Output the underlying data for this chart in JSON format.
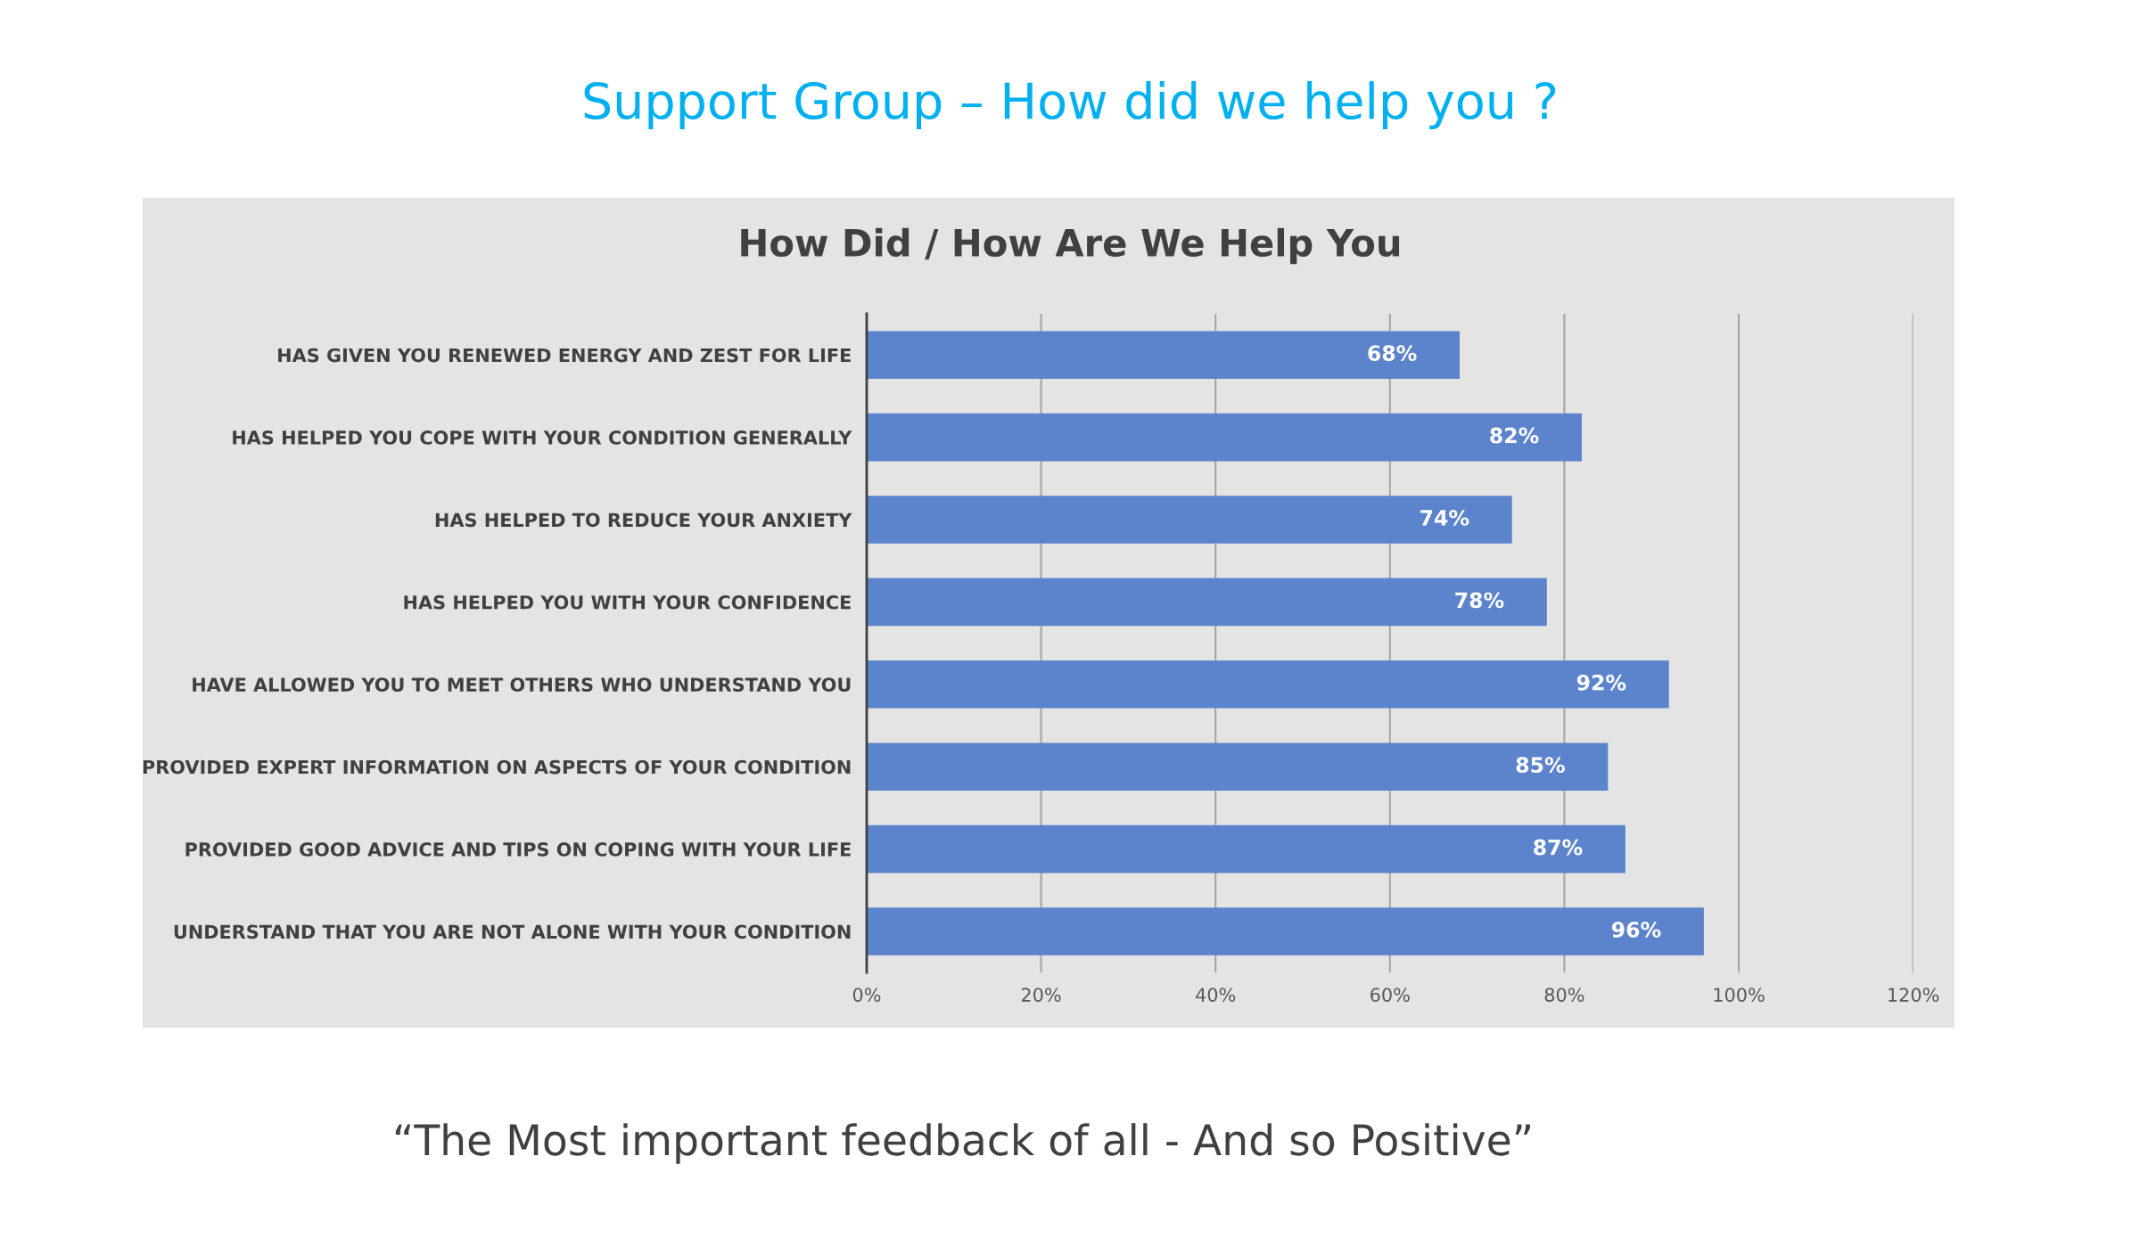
{
  "chart_data": {
    "type": "bar",
    "orientation": "horizontal",
    "title": "Support Group – How did we help you ?",
    "subtitle": "How Did / How Are We Help You",
    "categories": [
      "HAS GIVEN YOU RENEWED ENERGY AND ZEST FOR LIFE",
      "HAS HELPED YOU COPE WITH YOUR CONDITION GENERALLY",
      "HAS HELPED TO REDUCE YOUR ANXIETY",
      "HAS HELPED YOU WITH YOUR CONFIDENCE",
      "HAVE ALLOWED YOU TO MEET OTHERS WHO UNDERSTAND YOU",
      "PROVIDED EXPERT INFORMATION ON ASPECTS OF YOUR CONDITION",
      "PROVIDED GOOD ADVICE AND TIPS ON COPING WITH YOUR LIFE",
      "UNDERSTAND THAT YOU ARE NOT ALONE WITH YOUR CONDITION"
    ],
    "values": [
      68,
      82,
      74,
      78,
      92,
      85,
      87,
      96
    ],
    "value_labels": [
      "68%",
      "82%",
      "74%",
      "78%",
      "92%",
      "85%",
      "87%",
      "96%"
    ],
    "color": "#5b84cc",
    "xlim": [
      0,
      120
    ],
    "xticks": [
      {
        "value": 0,
        "label": "0%"
      },
      {
        "value": 20,
        "label": "20%"
      },
      {
        "value": 40,
        "label": "40%"
      },
      {
        "value": 60,
        "label": "60%"
      },
      {
        "value": 80,
        "label": "80%"
      },
      {
        "value": 100,
        "label": "100%"
      },
      {
        "value": 120,
        "label": "120%"
      }
    ],
    "grid": "x",
    "annotations": [
      "“The Most important feedback of all - And so Positive”"
    ]
  }
}
